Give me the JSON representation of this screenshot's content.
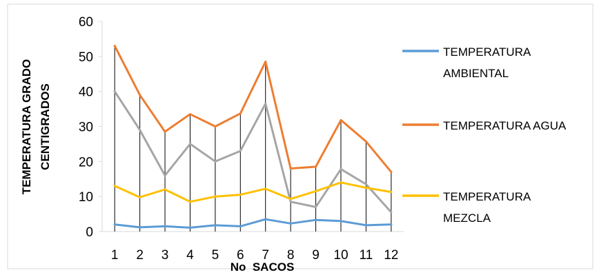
{
  "chart_data": {
    "type": "line",
    "title": "",
    "xlabel": "No  SACOS",
    "ylabel_lines": [
      "TEMPERATURA GRADO",
      "CENTIGRADOS"
    ],
    "ylim": [
      0,
      60
    ],
    "yticks": [
      "0",
      "10",
      "20",
      "30",
      "40",
      "50",
      "60"
    ],
    "categories": [
      "1",
      "2",
      "3",
      "4",
      "5",
      "6",
      "7",
      "8",
      "9",
      "10",
      "11",
      "12"
    ],
    "grid": false,
    "legend_position": "right",
    "series": [
      {
        "name_lines": [
          "TEMPERATURA",
          "AMBIENTAL"
        ],
        "color": "#5B9BD5",
        "values": [
          2,
          1.2,
          1.5,
          1.1,
          1.8,
          1.5,
          3.5,
          2.3,
          3.3,
          3,
          1.8,
          2
        ]
      },
      {
        "name_lines": [
          "TEMPERATURA AGUA"
        ],
        "color": "#ED7D31",
        "values": [
          53,
          39,
          28.5,
          33.5,
          30,
          33.7,
          48.5,
          18,
          18.5,
          31.8,
          25.7,
          17
        ]
      },
      {
        "name_lines": [
          "TEMPERATURA",
          "MEZCLA"
        ],
        "color": "#FFC000",
        "values": [
          13,
          9.8,
          12,
          8.5,
          10,
          10.5,
          12.2,
          9.3,
          11.5,
          14,
          12.5,
          11.3
        ]
      },
      {
        "color": "#A5A5A5",
        "values": [
          40,
          29,
          16,
          25,
          20,
          23,
          36.5,
          8.5,
          7,
          17.8,
          13.5,
          5.5
        ]
      }
    ],
    "drop_lines": {
      "color": "#000000",
      "to_series": 1
    }
  }
}
